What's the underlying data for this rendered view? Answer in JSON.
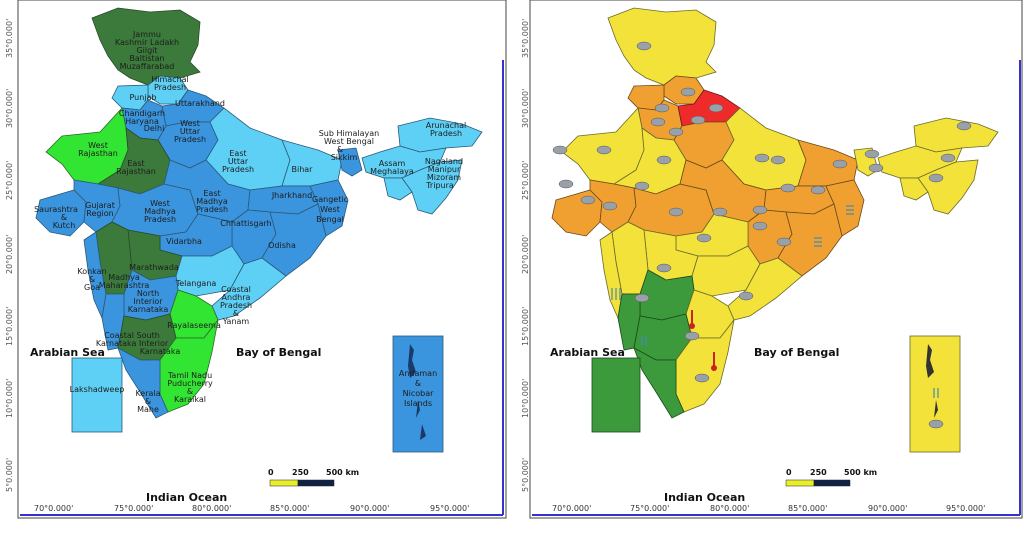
{
  "left_map": {
    "regions": {
      "jammu_kashmir": "Jammu Kashmir Ladakh Gilgit Baltistan Muzaffarabad",
      "himachal": "Himachal Pradesh",
      "punjab": "Punjab",
      "chandigarh": "Chandigarh Haryana Delhi",
      "uttarakhand": "Uttarakhand",
      "west_up": "West Uttar Pradesh",
      "east_up": "East Uttar Pradesh",
      "bihar": "Bihar",
      "west_rajasthan": "West Rajasthan",
      "east_rajasthan": "East Rajasthan",
      "saurashtra": "Saurashtra & Kutch",
      "gujarat": "Gujarat Region",
      "west_mp": "West Madhya Pradesh",
      "east_mp": "East Madhya Pradesh",
      "jharkhand": "Jharkhand",
      "gangetic_wb": "Gangetic West Bengal",
      "chhattisgarh": "Chhattisgarh",
      "odisha": "Odisha",
      "vidarbha": "Vidarbha",
      "marathwada": "Marathwada",
      "madhya_maha": "Madhya Maharashtra",
      "konkan": "Konkan & Goa",
      "telangana": "Telangana",
      "coastal_ap": "Coastal Andhra Pradesh & Yanam",
      "north_karnataka": "North Interior Karnataka",
      "rayalaseema": "Rayalaseema",
      "coastal_karnataka": "Coastal Karnataka",
      "south_karnataka": "South Interior Karnataka",
      "tamil_nadu": "Tamil Nadu Puducherry & Karaikal",
      "kerala": "Kerala & Mahe",
      "sub_himalayan": "Sub Himalayan West Bengal & Sikkim",
      "arunachal": "Arunachal Pradesh",
      "assam": "Assam Meghalaya",
      "nmmt": "Nagaland Manipur Mizoram Tripura",
      "lakshadweep": "Lakshadweep",
      "andaman": "Andaman & Nicobar Islands"
    },
    "colors": {
      "dark_green": "#3b7a3b",
      "light_green": "#33e533",
      "light_blue": "#5fd0f5",
      "mid_blue": "#3b94de"
    }
  },
  "right_map": {
    "colors": {
      "yellow": "#f2e23a",
      "orange": "#f0a030",
      "red": "#ee2a2a",
      "green": "#3c9a3c"
    },
    "icons": [
      "thunderstorm-icon",
      "heavy-rain-icon",
      "squall-icon",
      "heat-wave-icon"
    ]
  },
  "common": {
    "arabian_sea": "Arabian Sea",
    "bay_of_bengal": "Bay of Bengal",
    "indian_ocean": "Indian Ocean",
    "scale_0": "0",
    "scale_250": "250",
    "scale_500": "500 km",
    "lon_labels": [
      "70°0.000'",
      "75°0.000'",
      "80°0.000'",
      "85°0.000'",
      "90°0.000'",
      "95°0.000'"
    ],
    "lat_labels": [
      "35°0.000'",
      "30°0.000'",
      "25°0.000'",
      "20°0.000'",
      "15°0.000'",
      "10°0.000'",
      "5°0.000'"
    ]
  }
}
